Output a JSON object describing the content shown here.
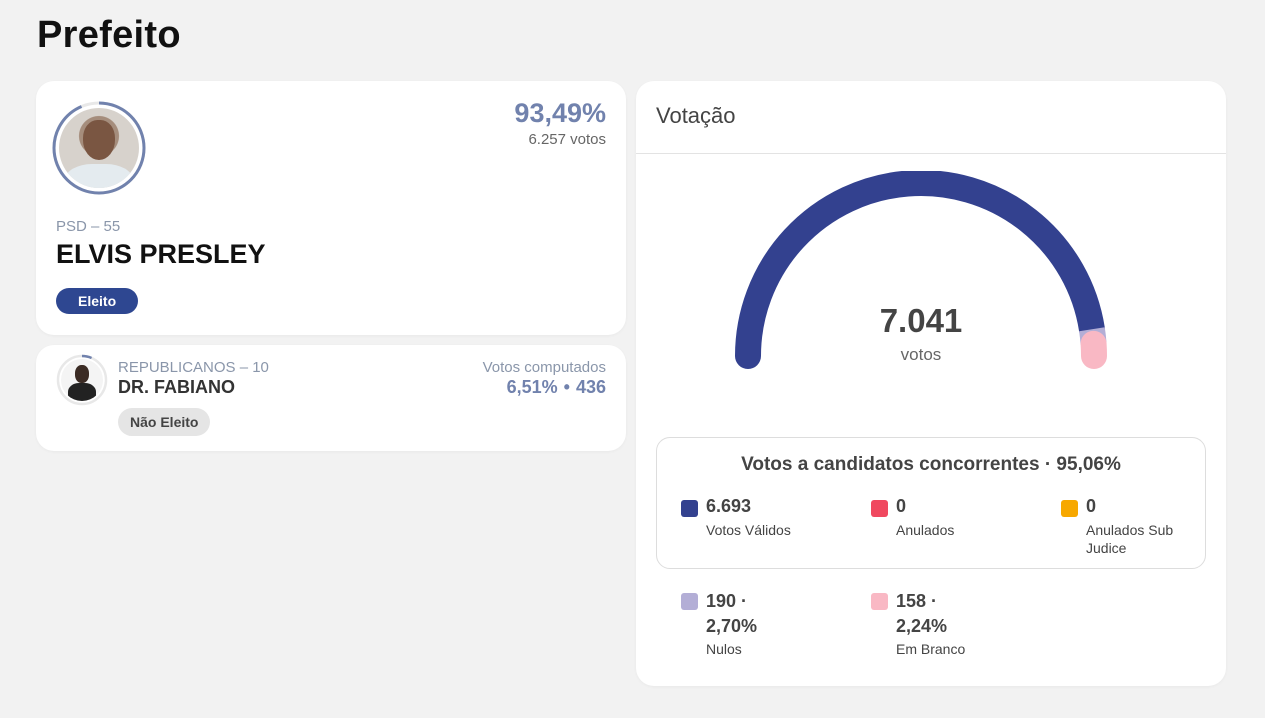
{
  "page": {
    "title": "Prefeito"
  },
  "winner": {
    "percent": "93,49%",
    "votes": "6.257 votos",
    "party": "PSD – 55",
    "name": "ELVIS PRESLEY",
    "status": "Eleito",
    "ring_fraction": 0.9349
  },
  "runner_up": {
    "party": "REPUBLICANOS – 10",
    "name": "DR. FABIANO",
    "status": "Não Eleito",
    "stats_label": "Votos computados",
    "percent": "6,51%",
    "separator": "•",
    "votes": "436",
    "ring_fraction": 0.0651
  },
  "votacao": {
    "title": "Votação",
    "total": "7.041",
    "unit": "votos",
    "gauge_segments": [
      {
        "name": "valid",
        "value": 6693,
        "color": "#33418f"
      },
      {
        "name": "nulos",
        "value": 190,
        "color": "#b3aed6"
      },
      {
        "name": "branco",
        "value": 158,
        "color": "#f9b8c4"
      }
    ],
    "box_title": "Votos a candidatos concorrentes · 95,06%",
    "legend": [
      {
        "value": "6.693",
        "label": "Votos Válidos",
        "color": "#33418f"
      },
      {
        "value": "0",
        "label": "Anulados",
        "color": "#f0485f"
      },
      {
        "value": "0",
        "label": "Anulados Sub Judice",
        "color": "#f7a800"
      }
    ],
    "extras": [
      {
        "value_line1": "190 ·",
        "value_line2": "2,70%",
        "label": "Nulos",
        "color": "#b3aed6"
      },
      {
        "value_line1": "158 ·",
        "value_line2": "2,24%",
        "label": "Em Branco",
        "color": "#f9b8c4"
      }
    ],
    "accent_ring_color": "#7182ad"
  }
}
